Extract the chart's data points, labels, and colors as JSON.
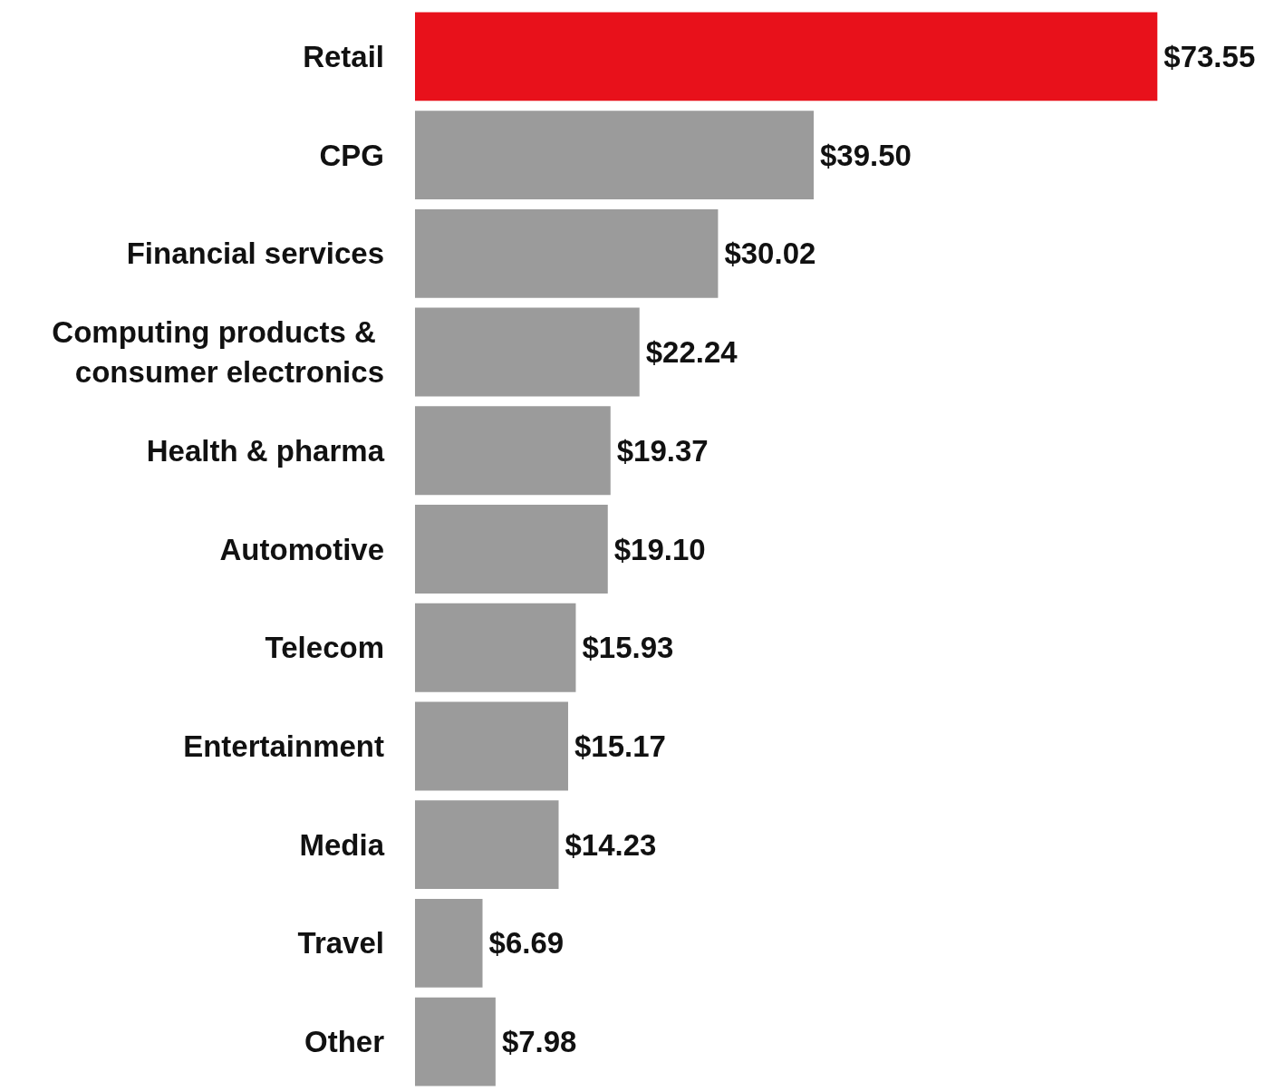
{
  "chart_data": {
    "type": "bar",
    "orientation": "horizontal",
    "categories": [
      "Retail",
      "CPG",
      "Financial services",
      "Computing products & consumer electronics",
      "Health & pharma",
      "Automotive",
      "Telecom",
      "Entertainment",
      "Media",
      "Travel",
      "Other"
    ],
    "values": [
      73.55,
      39.5,
      30.02,
      22.24,
      19.37,
      19.1,
      15.93,
      15.17,
      14.23,
      6.69,
      7.98
    ],
    "value_labels": [
      "$73.55",
      "$39.50",
      "$30.02",
      "$22.24",
      "$19.37",
      "$19.10",
      "$15.93",
      "$15.17",
      "$14.23",
      "$6.69",
      "$7.98"
    ],
    "colors": [
      "#e8111b",
      "#9b9b9b",
      "#9b9b9b",
      "#9b9b9b",
      "#9b9b9b",
      "#9b9b9b",
      "#9b9b9b",
      "#9b9b9b",
      "#9b9b9b",
      "#9b9b9b",
      "#9b9b9b"
    ]
  }
}
